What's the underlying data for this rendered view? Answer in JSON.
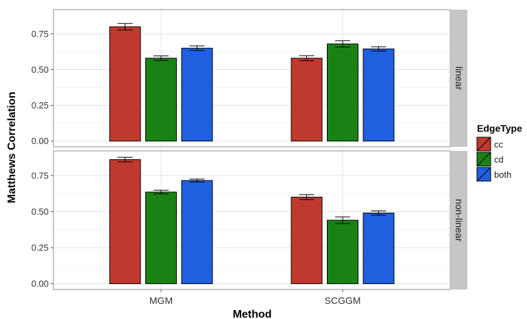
{
  "chart_data": {
    "type": "bar",
    "xlabel": "Method",
    "ylabel": "Matthews Correlation",
    "categories": [
      "MGM",
      "SCGGM"
    ],
    "ylim": [
      -0.04,
      0.92
    ],
    "yticks": [
      0.0,
      0.25,
      0.5,
      0.75
    ],
    "ytick_labels": [
      "0.00",
      "0.25",
      "0.50",
      "0.75"
    ],
    "grid": true,
    "legend": {
      "title": "EdgeType",
      "position": "right",
      "entries": [
        "cc",
        "cd",
        "both"
      ]
    },
    "colors": {
      "cc": "#c0392f",
      "cd": "#1a8214",
      "both": "#1f5fe0"
    },
    "panels": [
      {
        "label": "linear",
        "series": [
          {
            "name": "cc",
            "values": [
              0.8,
              0.58
            ],
            "errors": [
              0.023,
              0.018
            ]
          },
          {
            "name": "cd",
            "values": [
              0.58,
              0.68
            ],
            "errors": [
              0.016,
              0.022
            ]
          },
          {
            "name": "both",
            "values": [
              0.65,
              0.645
            ],
            "errors": [
              0.016,
              0.015
            ]
          }
        ]
      },
      {
        "label": "non-linear",
        "series": [
          {
            "name": "cc",
            "values": [
              0.86,
              0.6
            ],
            "errors": [
              0.016,
              0.017
            ]
          },
          {
            "name": "cd",
            "values": [
              0.635,
              0.44
            ],
            "errors": [
              0.013,
              0.023
            ]
          },
          {
            "name": "both",
            "values": [
              0.715,
              0.49
            ],
            "errors": [
              0.01,
              0.015
            ]
          }
        ]
      }
    ]
  }
}
